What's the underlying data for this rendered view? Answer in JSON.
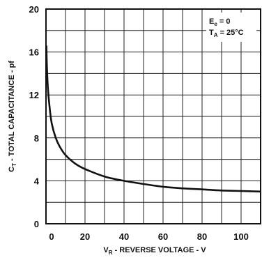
{
  "chart_data": {
    "type": "line",
    "xlabel": {
      "main": "V",
      "sub": "R",
      "rest": " - REVERSE VOLTAGE - V"
    },
    "ylabel": {
      "main": "C",
      "sub": "T",
      "rest": " - TOTAL CAPACITANCE - pf"
    },
    "xlim": [
      0,
      110
    ],
    "ylim": [
      0,
      20
    ],
    "x_ticks": [
      0,
      20,
      40,
      60,
      80,
      100
    ],
    "y_ticks": [
      0,
      4,
      8,
      12,
      16,
      20
    ],
    "x_tick_labels": [
      "0",
      "20",
      "40",
      "60",
      "80",
      "100"
    ],
    "y_tick_labels": [
      "0",
      "4",
      "8",
      "12",
      "16",
      "20"
    ],
    "grid": true,
    "annotations": {
      "line1": {
        "main": "E",
        "sub": "e",
        "rest": " = 0"
      },
      "line2": {
        "main": "T",
        "sub": "A",
        "rest": " = 25°C"
      }
    },
    "series": [
      {
        "x": [
          0.2,
          0.5,
          1,
          2,
          3,
          5,
          7,
          10,
          15,
          20,
          30,
          40,
          50,
          60,
          70,
          80,
          90,
          100,
          110
        ],
        "y": [
          16.6,
          14.5,
          12.6,
          10.6,
          9.3,
          8.0,
          7.2,
          6.4,
          5.6,
          5.1,
          4.4,
          4.0,
          3.7,
          3.45,
          3.3,
          3.2,
          3.1,
          3.05,
          3.0
        ]
      }
    ]
  }
}
